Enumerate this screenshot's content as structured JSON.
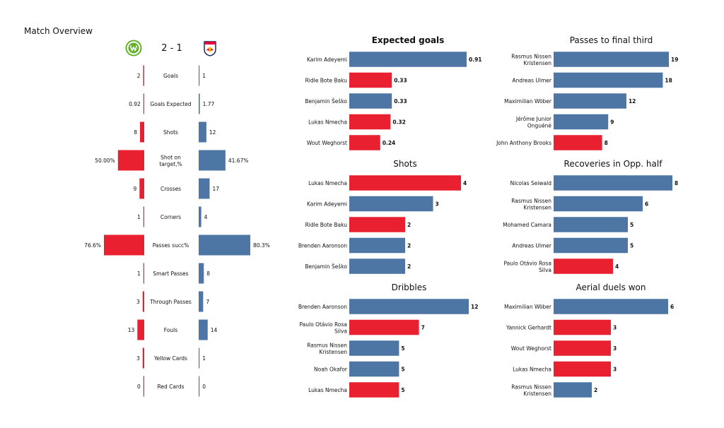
{
  "page": {
    "title": "Match Overview"
  },
  "colors": {
    "home": "#E8202F",
    "away": "#4E76A5",
    "text": "#111111",
    "axis": "#555555"
  },
  "match": {
    "home_logo_icon": "wolfsburg-crest-icon",
    "away_logo_icon": "leipzig-crest-icon",
    "score": "2 - 1"
  },
  "chart_data": [
    {
      "type": "bar",
      "chart_id": "overview",
      "orientation": "diverging-horizontal",
      "title": "",
      "categories": [
        "Goals",
        "Goals Expected",
        "Shots",
        "Shot on target,%",
        "Crosses",
        "Corners",
        "Passes succ%",
        "Smart Passes",
        "Through Passes",
        "Fouls",
        "Yellow Cards",
        "Red Cards"
      ],
      "series": [
        {
          "side": "home",
          "values": [
            2,
            0.92,
            8,
            50.0,
            9,
            1,
            76.6,
            1,
            3,
            13,
            3,
            0
          ],
          "labels": [
            "2",
            "0.92",
            "8",
            "50.00%",
            "9",
            "1",
            "76.6%",
            "1",
            "3",
            "13",
            "3",
            "0"
          ]
        },
        {
          "side": "away",
          "values": [
            1,
            1.77,
            12,
            41.67,
            17,
            4,
            80.3,
            8,
            7,
            14,
            1,
            0
          ],
          "labels": [
            "1",
            "1.77",
            "12",
            "41.67%",
            "17",
            "4",
            "80.3%",
            "8",
            "7",
            "14",
            "1",
            "0"
          ]
        }
      ]
    },
    {
      "type": "bar",
      "chart_id": "xg",
      "orientation": "horizontal",
      "title": "Expected goals",
      "title_bold": true,
      "xlim": [
        0,
        0.91
      ],
      "categories": [
        "Karim Adeyemi",
        "Ridle Bote Baku",
        "Benjamin Šeško",
        "Lukas Nmecha",
        "Wout Weghorst"
      ],
      "values": [
        0.91,
        0.33,
        0.33,
        0.32,
        0.24
      ],
      "labels": [
        "0.91",
        "0.33",
        "0.33",
        "0.32",
        "0.24"
      ],
      "teams": [
        "away",
        "home",
        "away",
        "home",
        "home"
      ]
    },
    {
      "type": "bar",
      "chart_id": "final_third",
      "orientation": "horizontal",
      "title": "Passes to final third",
      "xlim": [
        0,
        19
      ],
      "categories": [
        "Rasmus Nissen Kristensen",
        "Andreas Ulmer",
        "Maximilian Wöber",
        "Jérôme Junior Onguéné",
        "John Anthony Brooks"
      ],
      "category_lines": [
        [
          "Rasmus Nissen",
          "Kristensen"
        ],
        [
          "Andreas Ulmer"
        ],
        [
          "Maximilian Wöber"
        ],
        [
          "Jérôme Junior",
          "Onguéné"
        ],
        [
          "John Anthony Brooks"
        ]
      ],
      "values": [
        19,
        18,
        12,
        9,
        8
      ],
      "labels": [
        "19",
        "18",
        "12",
        "9",
        "8"
      ],
      "teams": [
        "away",
        "away",
        "away",
        "away",
        "home"
      ]
    },
    {
      "type": "bar",
      "chart_id": "shots",
      "orientation": "horizontal",
      "title": "Shots",
      "xlim": [
        0,
        4
      ],
      "categories": [
        "Lukas Nmecha",
        "Karim Adeyemi",
        "Ridle Bote Baku",
        "Brenden  Aaronson",
        "Benjamin Šeško"
      ],
      "values": [
        4,
        3,
        2,
        2,
        2
      ],
      "labels": [
        "4",
        "3",
        "2",
        "2",
        "2"
      ],
      "teams": [
        "home",
        "away",
        "home",
        "away",
        "away"
      ]
    },
    {
      "type": "bar",
      "chart_id": "recoveries",
      "orientation": "horizontal",
      "title": "Recoveries in Opp. half",
      "xlim": [
        0,
        8
      ],
      "categories": [
        "Nicolas Seiwald",
        "Rasmus Nissen Kristensen",
        "Mohamed Camara",
        "Andreas Ulmer",
        "Paulo Otávio Rosa Silva"
      ],
      "category_lines": [
        [
          "Nicolas Seiwald"
        ],
        [
          "Rasmus Nissen",
          "Kristensen"
        ],
        [
          "Mohamed Camara"
        ],
        [
          "Andreas Ulmer"
        ],
        [
          "Paulo Otávio Rosa",
          "Silva"
        ]
      ],
      "values": [
        8,
        6,
        5,
        5,
        4
      ],
      "labels": [
        "8",
        "6",
        "5",
        "5",
        "4"
      ],
      "teams": [
        "away",
        "away",
        "away",
        "away",
        "home"
      ]
    },
    {
      "type": "bar",
      "chart_id": "dribbles",
      "orientation": "horizontal",
      "title": "Dribbles",
      "xlim": [
        0,
        12
      ],
      "categories": [
        "Brenden  Aaronson",
        "Paulo Otávio Rosa Silva",
        "Rasmus Nissen Kristensen",
        "Noah Okafor",
        "Lukas Nmecha"
      ],
      "category_lines": [
        [
          "Brenden  Aaronson"
        ],
        [
          "Paulo Otávio Rosa",
          "Silva"
        ],
        [
          "Rasmus Nissen",
          "Kristensen"
        ],
        [
          "Noah Okafor"
        ],
        [
          "Lukas Nmecha"
        ]
      ],
      "values": [
        12,
        7,
        5,
        5,
        5
      ],
      "labels": [
        "12",
        "7",
        "5",
        "5",
        "5"
      ],
      "teams": [
        "away",
        "home",
        "away",
        "away",
        "home"
      ]
    },
    {
      "type": "bar",
      "chart_id": "aerials",
      "orientation": "horizontal",
      "title": "Aerial duels won",
      "xlim": [
        0,
        6
      ],
      "categories": [
        "Maximilian Wöber",
        "Yannick Gerhardt",
        "Wout Weghorst",
        "Lukas Nmecha",
        "Rasmus Nissen Kristensen"
      ],
      "category_lines": [
        [
          "Maximilian Wöber"
        ],
        [
          "Yannick Gerhardt"
        ],
        [
          "Wout Weghorst"
        ],
        [
          "Lukas Nmecha"
        ],
        [
          "Rasmus Nissen",
          "Kristensen"
        ]
      ],
      "values": [
        6,
        3,
        3,
        3,
        2
      ],
      "labels": [
        "6",
        "3",
        "3",
        "3",
        "2"
      ],
      "teams": [
        "away",
        "home",
        "home",
        "home",
        "away"
      ]
    }
  ]
}
